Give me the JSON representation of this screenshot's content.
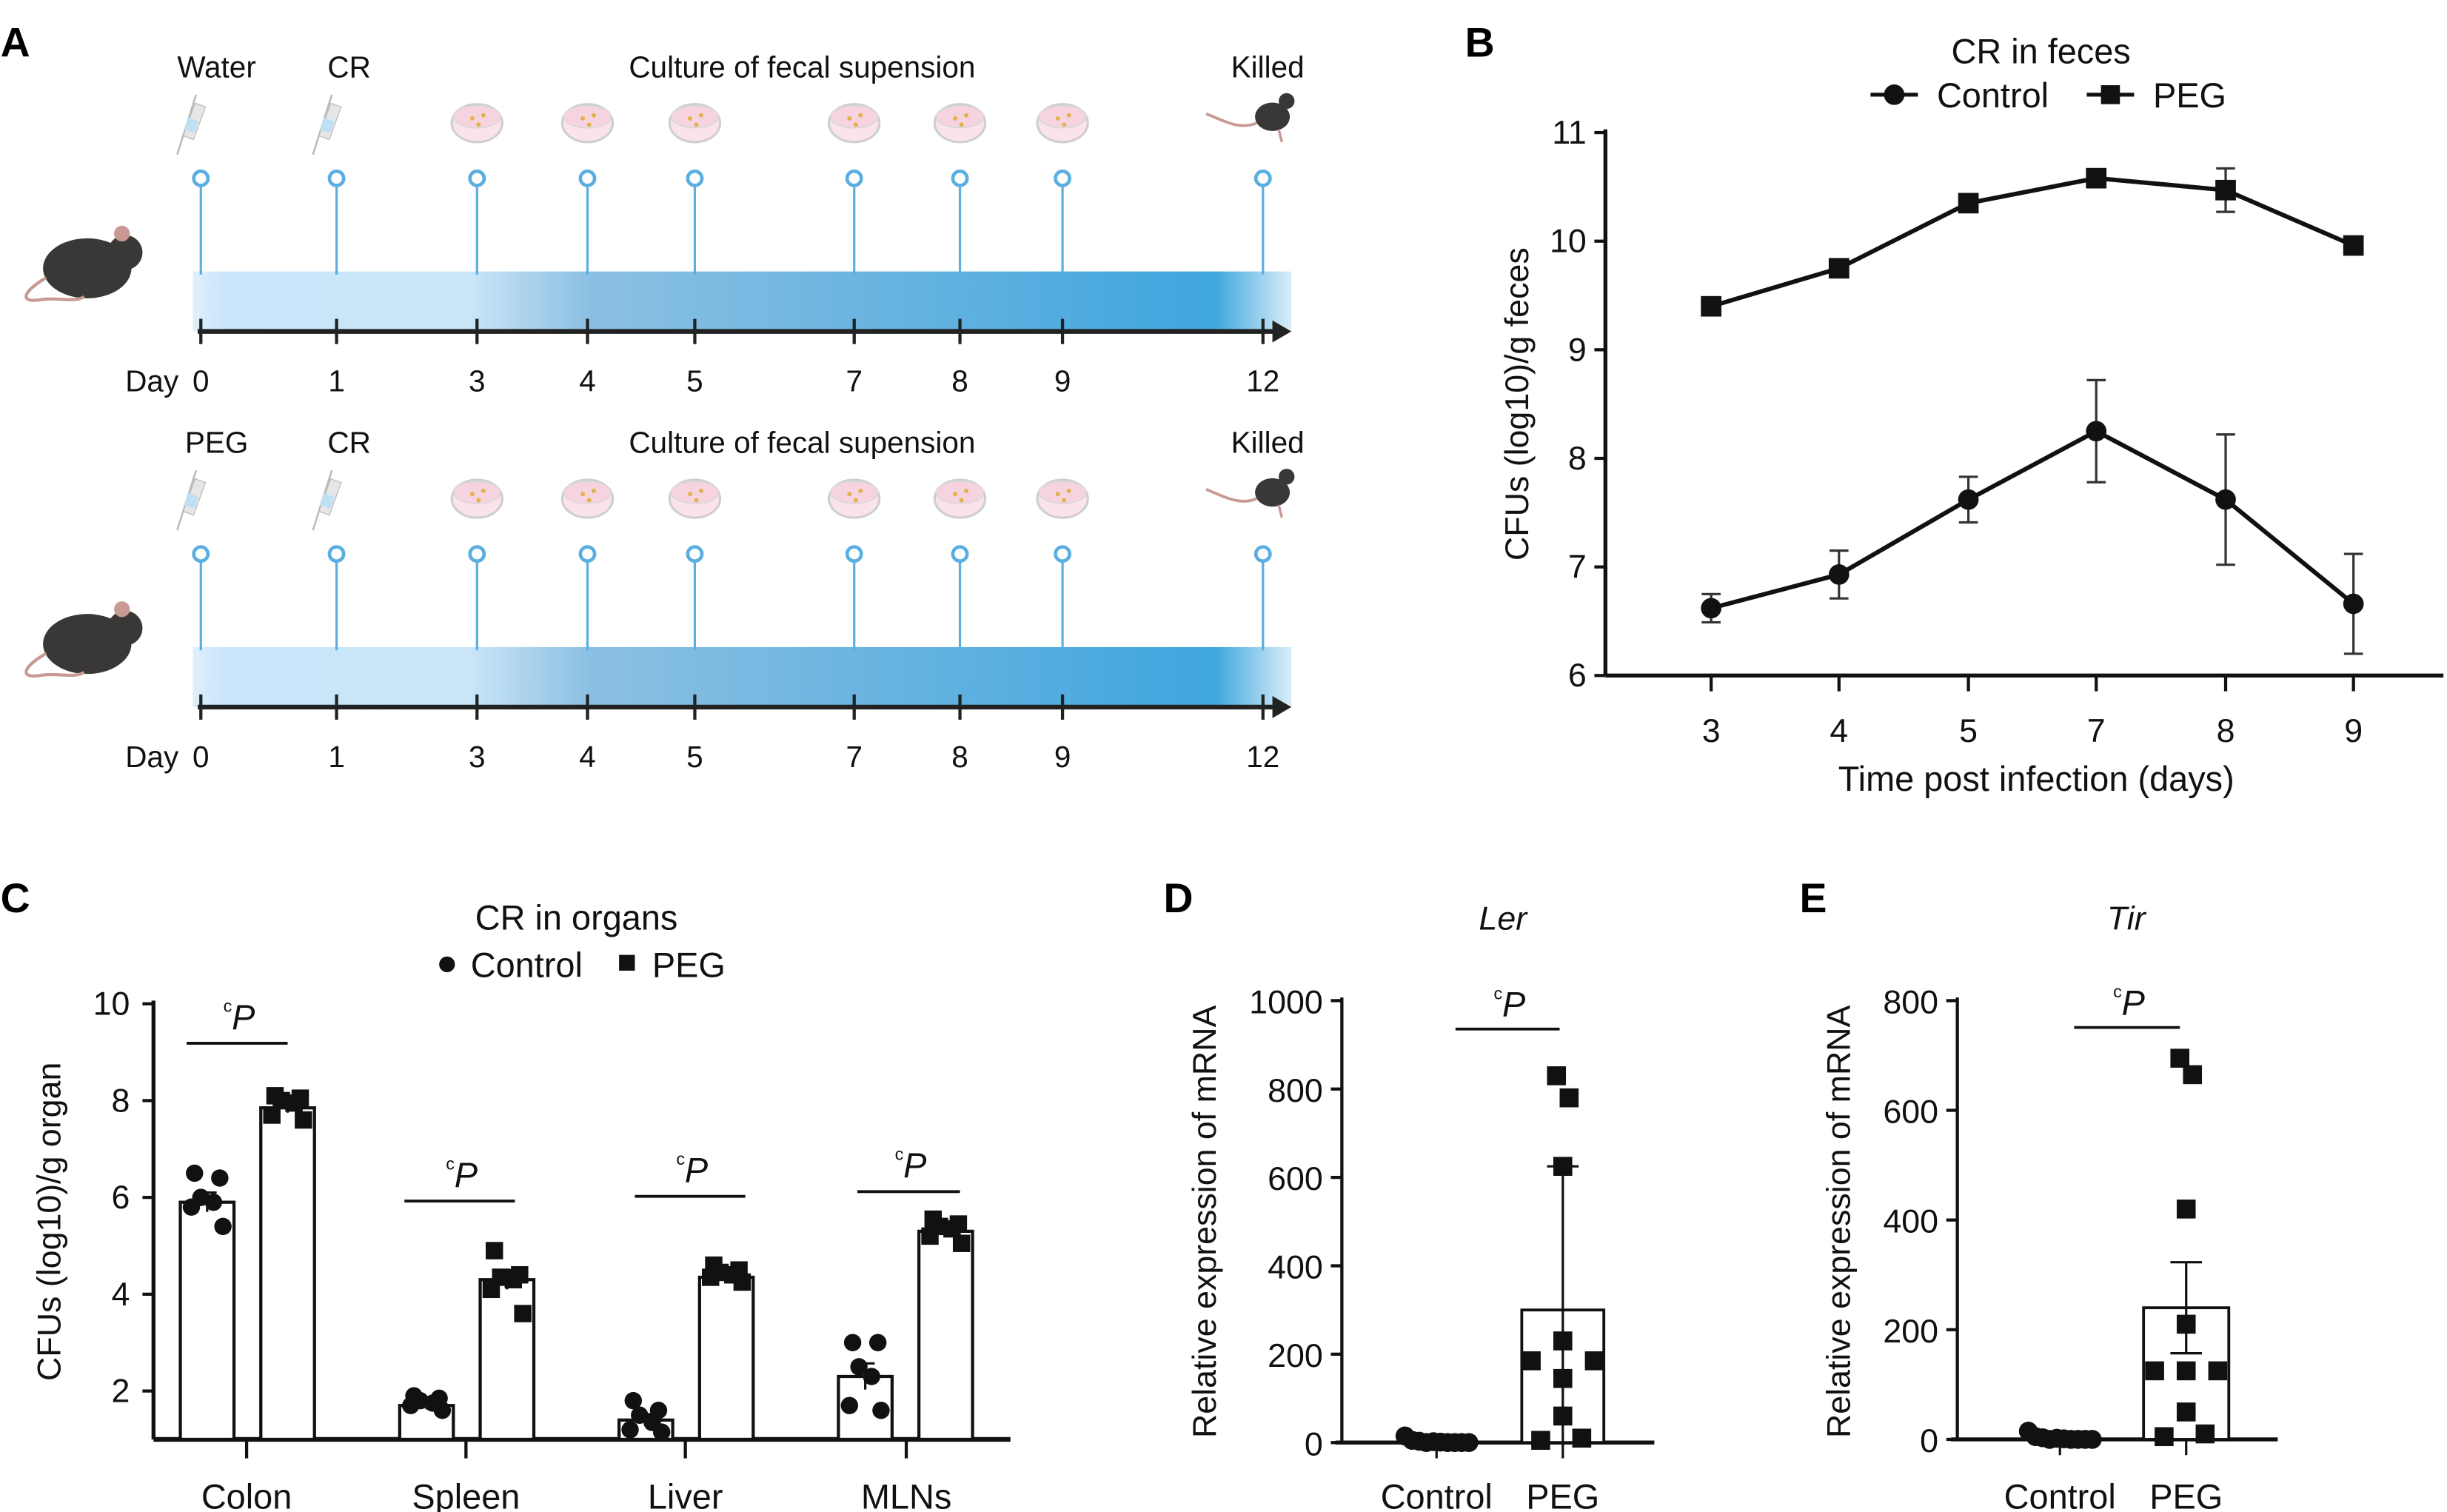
{
  "panels": {
    "a": "A",
    "b": "B",
    "c": "C",
    "d": "D",
    "e": "E"
  },
  "timeline": {
    "day_label": "Day",
    "days": [
      "0",
      "1",
      "3",
      "4",
      "5",
      "7",
      "8",
      "9",
      "12"
    ],
    "arrow_color": "#222222",
    "stem_color": "#5aaee0",
    "gradient_colors": [
      "#c8e5fa",
      "#86bde0",
      "#3fa6de"
    ],
    "rows": [
      {
        "labels": [
          {
            "text": "Water",
            "day": "0"
          },
          {
            "text": "CR",
            "day": "1"
          },
          {
            "text": "Culture of fecal supension",
            "day": "4-5"
          },
          {
            "text": "Killed",
            "day": "12"
          }
        ],
        "icons": [
          "syringe-icon",
          "syringe-icon",
          "petri-dish-icon",
          "petri-dish-icon",
          "petri-dish-icon",
          "petri-dish-icon",
          "petri-dish-icon",
          "petri-dish-icon",
          "dead-mouse-icon"
        ]
      },
      {
        "labels": [
          {
            "text": "PEG",
            "day": "0"
          },
          {
            "text": "CR",
            "day": "1"
          },
          {
            "text": "Culture of fecal supension",
            "day": "4-5"
          },
          {
            "text": "Killed",
            "day": "12"
          }
        ],
        "icons": [
          "syringe-icon",
          "syringe-icon",
          "petri-dish-icon",
          "petri-dish-icon",
          "petri-dish-icon",
          "petri-dish-icon",
          "petri-dish-icon",
          "petri-dish-icon",
          "dead-mouse-icon"
        ]
      }
    ]
  },
  "chart_data": [
    {
      "id": "B",
      "type": "line",
      "title": "CR in feces",
      "xlabel": "Time post infection (days)",
      "ylabel": "CFUs (log10)/g feces",
      "categories": [
        "3",
        "4",
        "5",
        "7",
        "8",
        "9"
      ],
      "ylim": [
        6,
        11
      ],
      "yticks": [
        "6",
        "7",
        "8",
        "9",
        "10",
        "11"
      ],
      "legend": "top",
      "series": [
        {
          "name": "Control",
          "marker": "circle",
          "values": [
            6.62,
            6.93,
            7.62,
            8.25,
            7.62,
            6.66
          ],
          "error": [
            0.13,
            0.22,
            0.21,
            0.47,
            0.6,
            0.46
          ]
        },
        {
          "name": "PEG",
          "marker": "square",
          "values": [
            9.4,
            9.75,
            10.35,
            10.58,
            10.47,
            9.96
          ],
          "error": [
            0.08,
            0.04,
            0.07,
            0.08,
            0.2,
            0.06
          ]
        }
      ]
    },
    {
      "id": "C",
      "type": "bar",
      "title": "CR in organs",
      "xlabel": "",
      "ylabel": "CFUs (log10)/g organ",
      "categories": [
        "Colon",
        "Spleen",
        "Liver",
        "MLNs"
      ],
      "ylim": [
        1,
        10
      ],
      "yticks": [
        "2",
        "4",
        "6",
        "8",
        "10"
      ],
      "legend": "top",
      "significance": "P",
      "significance_superscript": "c",
      "series": [
        {
          "name": "Control",
          "marker": "circle",
          "values": [
            5.9,
            1.7,
            1.4,
            2.3
          ],
          "error": [
            0.2,
            0.08,
            0.12,
            0.27
          ],
          "points": [
            [
              6.5,
              6.4,
              6.0,
              5.9,
              5.8,
              5.4
            ],
            [
              1.9,
              1.85,
              1.8,
              1.75,
              1.7,
              1.6
            ],
            [
              1.8,
              1.6,
              1.5,
              1.35,
              1.2,
              1.15
            ],
            [
              3.0,
              3.0,
              2.5,
              2.3,
              1.7,
              1.6
            ]
          ]
        },
        {
          "name": "PEG",
          "marker": "square",
          "values": [
            7.85,
            4.3,
            4.35,
            5.3
          ],
          "error": [
            0.1,
            0.2,
            0.06,
            0.07
          ],
          "points": [
            [
              8.1,
              8.05,
              8.0,
              7.95,
              7.7,
              7.6
            ],
            [
              4.9,
              4.4,
              4.35,
              4.3,
              4.1,
              3.6
            ],
            [
              4.6,
              4.5,
              4.45,
              4.4,
              4.35,
              4.25
            ],
            [
              5.55,
              5.45,
              5.4,
              5.35,
              5.2,
              5.05
            ]
          ]
        }
      ]
    },
    {
      "id": "D",
      "type": "bar",
      "title": "Ler",
      "ylabel": "Relative expression of mRNA",
      "categories": [
        "Control",
        "PEG"
      ],
      "ylim": [
        0,
        1000
      ],
      "yticks": [
        "0",
        "200",
        "400",
        "600",
        "800",
        "1000"
      ],
      "significance": "P",
      "significance_superscript": "c",
      "values": [
        5,
        300
      ],
      "error": [
        3,
        325
      ],
      "points": [
        [
          15,
          5,
          3,
          0,
          2,
          1,
          0,
          0,
          0,
          0
        ],
        [
          830,
          780,
          625,
          230,
          185,
          185,
          145,
          60,
          5,
          10
        ]
      ]
    },
    {
      "id": "E",
      "type": "bar",
      "title": "Tir",
      "ylabel": "Relative expression of mRNA",
      "categories": [
        "Control",
        "PEG"
      ],
      "ylim": [
        0,
        800
      ],
      "yticks": [
        "0",
        "200",
        "400",
        "600",
        "800"
      ],
      "significance": "P",
      "significance_superscript": "c",
      "values": [
        5,
        240
      ],
      "error": [
        3,
        83
      ],
      "points": [
        [
          15,
          5,
          3,
          0,
          2,
          1,
          0,
          0,
          0,
          0
        ],
        [
          695,
          665,
          420,
          210,
          125,
          125,
          125,
          50,
          5,
          10
        ]
      ]
    }
  ]
}
